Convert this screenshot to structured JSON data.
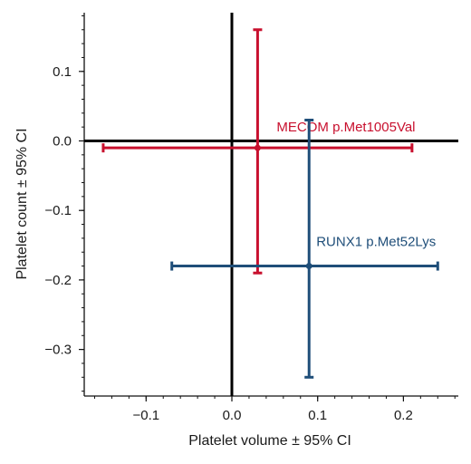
{
  "chart_data": {
    "type": "scatter",
    "title": "",
    "xlabel": "Platelet volume ± 95% CI",
    "ylabel": "Platelet count ± 95% CI",
    "xlim": [
      -0.17,
      0.26
    ],
    "ylim": [
      -0.37,
      0.18
    ],
    "x_ticks": [
      -0.1,
      0.0,
      0.1,
      0.2
    ],
    "x_tick_labels": [
      "−0.1",
      "0.0",
      "0.1",
      "0.2"
    ],
    "y_ticks": [
      0.1,
      0.0,
      -0.1,
      -0.2,
      -0.3
    ],
    "y_tick_labels": [
      "0.1",
      "0.0",
      "−0.1",
      "−0.2",
      "−0.3"
    ],
    "x_minor_step": 0.02,
    "y_minor_step": 0.02,
    "grid": false,
    "reference_lines": {
      "x": 0,
      "y": 0
    },
    "series": [
      {
        "name": "MECOM p.Met1005Val",
        "color": "#c8102e",
        "x": 0.03,
        "x_low": -0.15,
        "x_high": 0.21,
        "y": -0.01,
        "y_low": -0.19,
        "y_high": 0.16
      },
      {
        "name": "RUNX1 p.Met52Lys",
        "color": "#1f4e79",
        "x": 0.09,
        "x_low": -0.07,
        "x_high": 0.24,
        "y": -0.18,
        "y_low": -0.34,
        "y_high": 0.03
      }
    ]
  }
}
